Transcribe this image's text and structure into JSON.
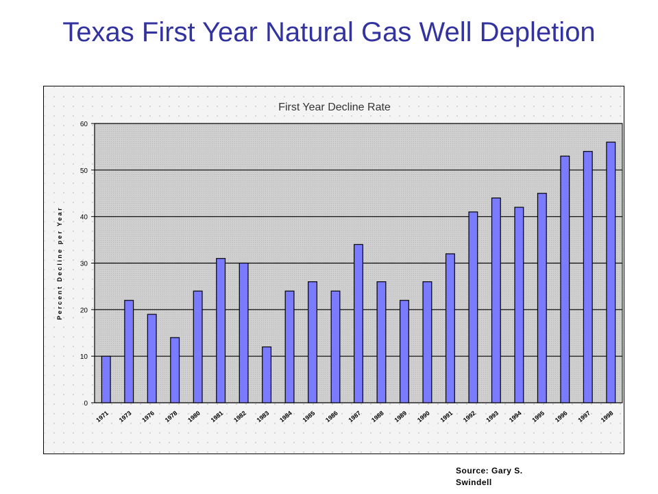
{
  "slide": {
    "title": "Texas First Year Natural Gas Well Depletion",
    "source": "Source: Gary S. Swindell"
  },
  "chart_data": {
    "type": "bar",
    "title": "First Year Decline Rate",
    "xlabel": "",
    "ylabel": "Percent Decline per Year",
    "ylim": [
      0,
      60
    ],
    "yticks": [
      0,
      10,
      20,
      30,
      40,
      50,
      60
    ],
    "grid": true,
    "categories": [
      "1971",
      "1973",
      "1976",
      "1978",
      "1980",
      "1981",
      "1982",
      "1983",
      "1984",
      "1985",
      "1986",
      "1987",
      "1988",
      "1989",
      "1990",
      "1991",
      "1992",
      "1993",
      "1994",
      "1995",
      "1996",
      "1997",
      "1998"
    ],
    "values": [
      10,
      22,
      19,
      14,
      24,
      31,
      30,
      12,
      24,
      26,
      24,
      34,
      26,
      22,
      26,
      32,
      41,
      44,
      42,
      45,
      53,
      54,
      56
    ],
    "colors": {
      "bar": "#7b7bff",
      "plot_bg": "#c8c8c8",
      "frame_bg": "#f2f2f2",
      "title": "#3333a0"
    }
  }
}
